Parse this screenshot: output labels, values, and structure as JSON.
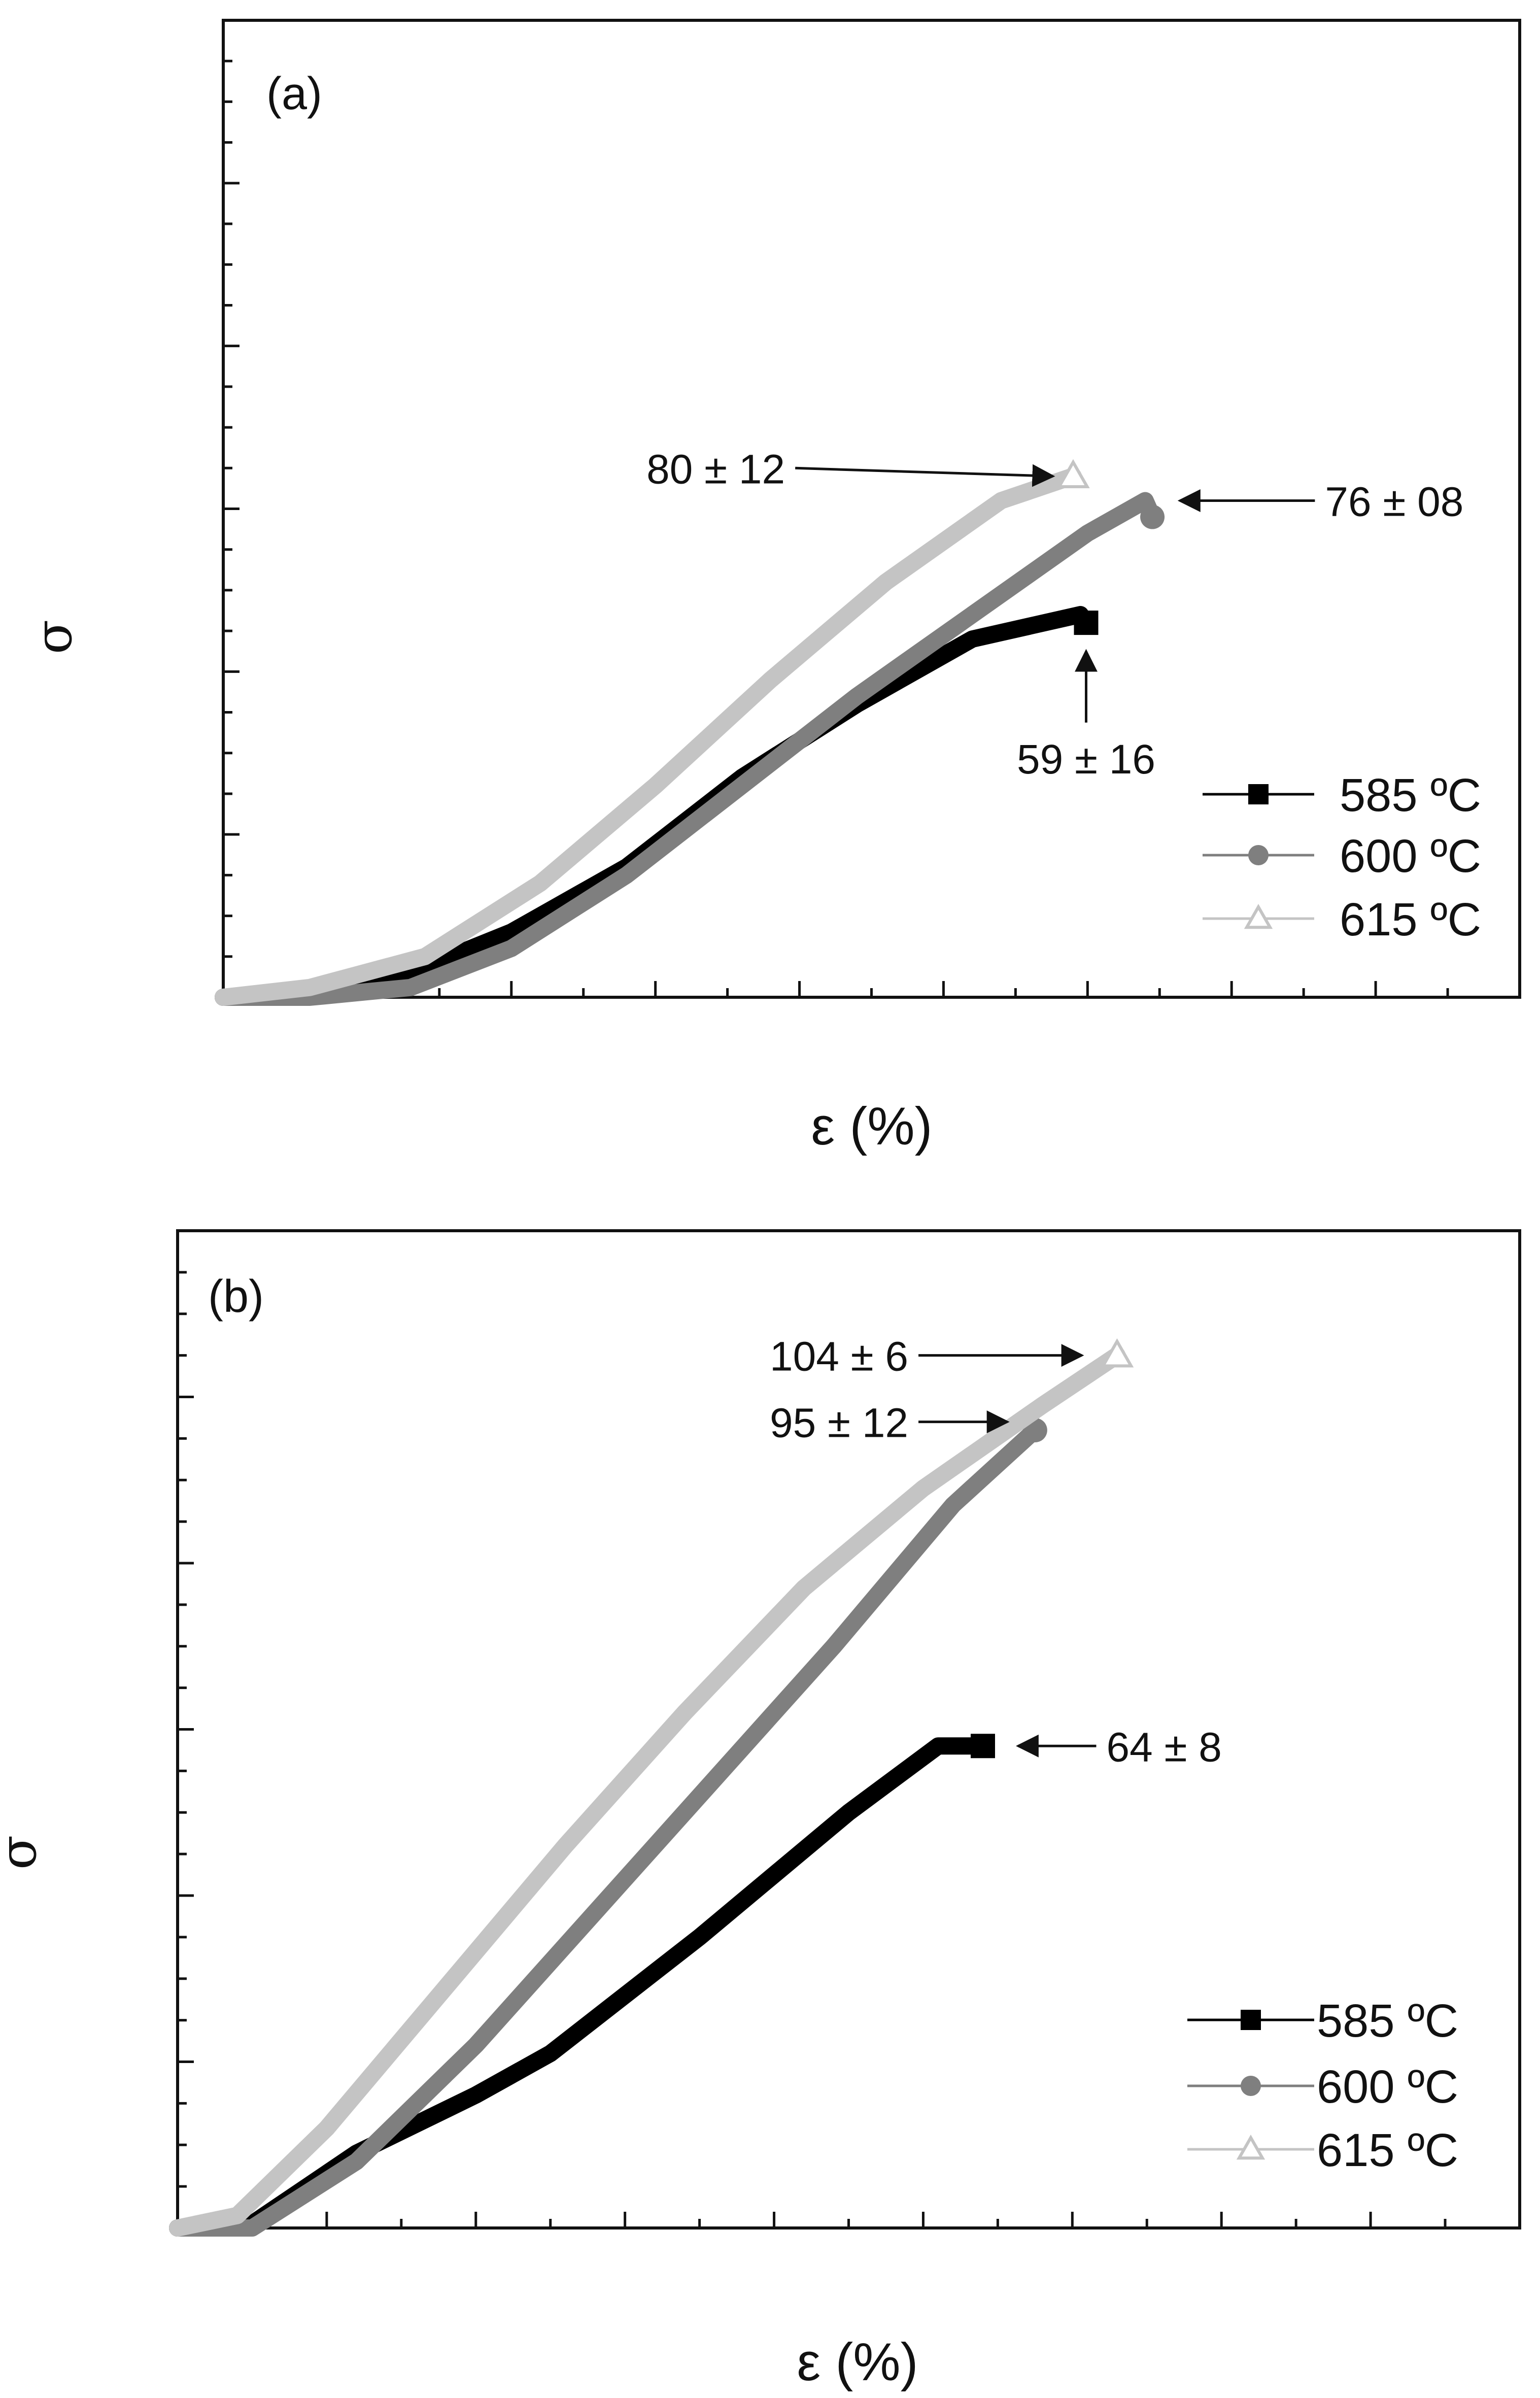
{
  "chart_data": [
    {
      "type": "line",
      "panel_label": "(a)",
      "xlabel": "ε (%)",
      "ylabel": "σ",
      "xlim": [
        0,
        9
      ],
      "ylim": [
        0,
        12
      ],
      "grid": false,
      "legend_position": "bottom-right",
      "series": [
        {
          "name": "585 ºC",
          "color": "#000000",
          "marker": "square",
          "x": [
            0.0,
            0.6,
            1.3,
            2.0,
            2.8,
            3.6,
            4.4,
            5.2,
            5.95,
            5.99
          ],
          "y": [
            0.0,
            0.08,
            0.3,
            0.8,
            1.6,
            2.7,
            3.6,
            4.4,
            4.7,
            4.6
          ]
        },
        {
          "name": "600 ºC",
          "color": "#7f7f7f",
          "marker": "circle",
          "x": [
            0.0,
            0.6,
            1.3,
            2.0,
            2.8,
            3.6,
            4.4,
            5.2,
            6.0,
            6.4,
            6.45
          ],
          "y": [
            0.0,
            0.0,
            0.12,
            0.6,
            1.5,
            2.6,
            3.7,
            4.7,
            5.7,
            6.1,
            5.9
          ]
        },
        {
          "name": "615 ºC",
          "color": "#c4c4c4",
          "marker": "triangle",
          "x": [
            0.0,
            0.6,
            1.4,
            2.2,
            3.0,
            3.8,
            4.6,
            5.4,
            5.9
          ],
          "y": [
            0.0,
            0.12,
            0.5,
            1.4,
            2.6,
            3.9,
            5.1,
            6.1,
            6.4
          ]
        }
      ],
      "annotations": [
        {
          "text": "80 ± 12",
          "series": "615 ºC",
          "at_x": 5.9,
          "at_y": 6.4,
          "text_x": 3.9,
          "text_y": 6.5,
          "arrow": "right"
        },
        {
          "text": "76 ± 08",
          "series": "600 ºC",
          "at_x": 6.5,
          "at_y": 6.1,
          "text_x": 7.05,
          "text_y": 6.1,
          "arrow": "left"
        },
        {
          "text": "59 ± 16",
          "series": "585 ºC",
          "at_x": 5.99,
          "at_y": 4.5,
          "text_x": 5.99,
          "text_y": 3.0,
          "arrow": "up"
        }
      ]
    },
    {
      "type": "line",
      "panel_label": "(b)",
      "xlabel": "ε (%)",
      "ylabel": "σ",
      "xlim": [
        0,
        9
      ],
      "ylim": [
        0,
        12
      ],
      "grid": false,
      "legend_position": "bottom-right",
      "series": [
        {
          "name": "585 ºC",
          "color": "#000000",
          "marker": "square",
          "x": [
            0.0,
            0.5,
            1.2,
            2.0,
            2.5,
            3.5,
            4.5,
            5.1,
            5.4
          ],
          "y": [
            0.0,
            0.05,
            0.9,
            1.6,
            2.1,
            3.5,
            5.0,
            5.8,
            5.8
          ]
        },
        {
          "name": "600 ºC",
          "color": "#7f7f7f",
          "marker": "circle",
          "x": [
            0.0,
            0.5,
            1.2,
            2.0,
            2.8,
            3.6,
            4.4,
            5.2,
            5.75
          ],
          "y": [
            0.0,
            0.0,
            0.8,
            2.2,
            3.8,
            5.4,
            7.0,
            8.7,
            9.6
          ]
        },
        {
          "name": "615 ºC",
          "color": "#c4c4c4",
          "marker": "triangle",
          "x": [
            0.0,
            0.4,
            1.0,
            1.8,
            2.6,
            3.4,
            4.2,
            5.0,
            5.8,
            6.3
          ],
          "y": [
            0.0,
            0.15,
            1.2,
            2.9,
            4.6,
            6.2,
            7.7,
            8.9,
            9.9,
            10.5
          ]
        }
      ],
      "annotations": [
        {
          "text": "104 ± 6",
          "series": "615 ºC",
          "at_x": 6.2,
          "at_y": 10.5,
          "text_x": 4.9,
          "text_y": 10.5,
          "arrow": "right"
        },
        {
          "text": "95 ± 12",
          "series": "600 ºC",
          "at_x": 5.7,
          "at_y": 9.7,
          "text_x": 4.9,
          "text_y": 9.7,
          "arrow": "right"
        },
        {
          "text": "64 ± 8",
          "series": "585 ºC",
          "at_x": 5.5,
          "at_y": 5.8,
          "text_x": 5.65,
          "text_y": 5.8,
          "arrow": "left"
        }
      ]
    }
  ]
}
